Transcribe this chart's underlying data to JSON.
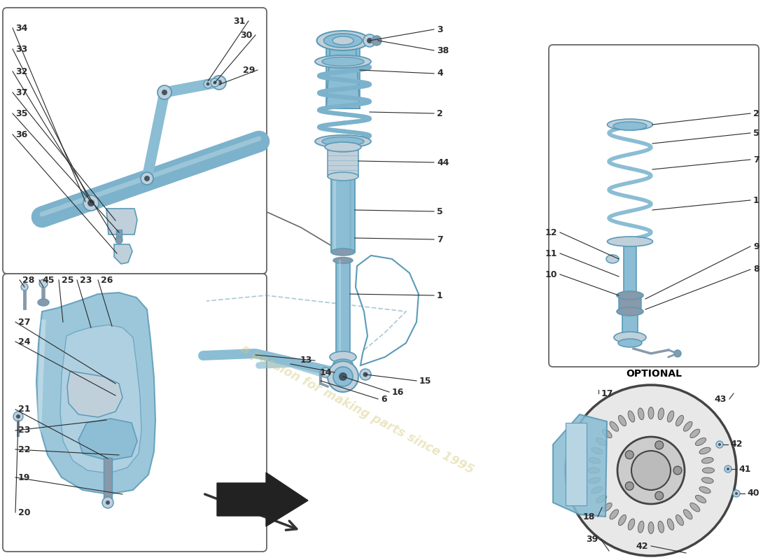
{
  "bg": "#ffffff",
  "blue_fill": "#8bbdd4",
  "blue_stroke": "#5a9ab8",
  "blue_light": "#b8d5e4",
  "grey_part": "#c0d0da",
  "grey_dark": "#8899aa",
  "line": "#2a2a2a",
  "lfs": 9,
  "wm_color": "#d4c97a",
  "wm_alpha": 0.45,
  "opt_fs": 10,
  "box_ec": "#666666",
  "label_fw": "bold"
}
